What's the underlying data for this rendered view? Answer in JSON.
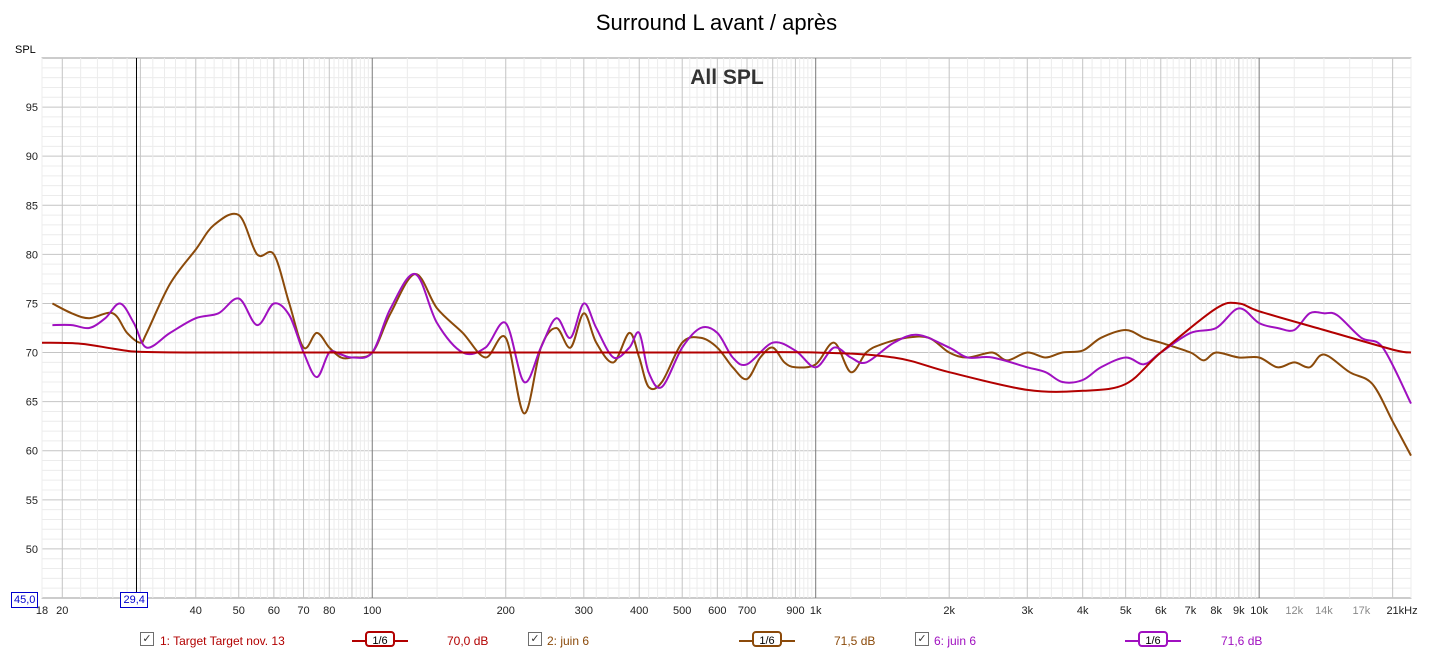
{
  "chart_data": {
    "type": "line",
    "title": "Surround L avant / après",
    "subtitle": "All SPL",
    "ylabel": "SPL",
    "xunit": "Hz",
    "xscale": "log",
    "xlim": [
      18,
      22000
    ],
    "ylim": [
      45,
      100
    ],
    "yticks": [
      50,
      55,
      60,
      65,
      70,
      75,
      80,
      85,
      90,
      95
    ],
    "xtick_labels": [
      {
        "f": 18,
        "label": "18"
      },
      {
        "f": 20,
        "label": "20"
      },
      {
        "f": 40,
        "label": "40"
      },
      {
        "f": 50,
        "label": "50"
      },
      {
        "f": 60,
        "label": "60"
      },
      {
        "f": 70,
        "label": "70"
      },
      {
        "f": 80,
        "label": "80"
      },
      {
        "f": 100,
        "label": "100"
      },
      {
        "f": 200,
        "label": "200"
      },
      {
        "f": 300,
        "label": "300"
      },
      {
        "f": 400,
        "label": "400"
      },
      {
        "f": 500,
        "label": "500"
      },
      {
        "f": 600,
        "label": "600"
      },
      {
        "f": 700,
        "label": "700"
      },
      {
        "f": 900,
        "label": "900"
      },
      {
        "f": 1000,
        "label": "1k"
      },
      {
        "f": 2000,
        "label": "2k"
      },
      {
        "f": 3000,
        "label": "3k"
      },
      {
        "f": 4000,
        "label": "4k"
      },
      {
        "f": 5000,
        "label": "5k"
      },
      {
        "f": 6000,
        "label": "6k"
      },
      {
        "f": 7000,
        "label": "7k"
      },
      {
        "f": 8000,
        "label": "8k"
      },
      {
        "f": 9000,
        "label": "9k"
      },
      {
        "f": 10000,
        "label": "10k"
      },
      {
        "f": 12000,
        "label": "12k"
      },
      {
        "f": 14000,
        "label": "14k"
      },
      {
        "f": 17000,
        "label": "17k"
      },
      {
        "f": 21000,
        "label": "21kHz"
      }
    ],
    "grid": true,
    "cursor": {
      "x": 29.4,
      "x_label": "29,4",
      "y_label": "45,0"
    },
    "series": [
      {
        "name": "1: Target Target nov. 13",
        "color": "#b20000",
        "level": "70,0 dB",
        "smoothing": "1/6",
        "x": [
          18,
          22,
          26,
          29.4,
          40,
          100,
          500,
          1000,
          1500,
          2000,
          3000,
          4000,
          5000,
          6000,
          8000,
          9000,
          10000,
          14000,
          20000,
          22000
        ],
        "y": [
          71.0,
          70.9,
          70.4,
          70.1,
          70.0,
          70.0,
          70.0,
          70.0,
          69.5,
          68.0,
          66.2,
          66.1,
          66.8,
          70.0,
          74.5,
          75.0,
          74.2,
          72.3,
          70.3,
          70.0
        ]
      },
      {
        "name": "2: juin 6",
        "color": "#8b4a0a",
        "level": "71,5 dB",
        "smoothing": "1/6",
        "x": [
          19,
          21,
          23,
          26,
          28,
          30,
          31,
          35,
          40,
          44,
          50,
          55,
          60,
          65,
          70,
          75,
          80,
          85,
          90,
          100,
          110,
          125,
          140,
          160,
          180,
          200,
          220,
          240,
          260,
          280,
          300,
          320,
          350,
          380,
          400,
          420,
          450,
          500,
          550,
          600,
          650,
          700,
          750,
          800,
          850,
          900,
          1000,
          1100,
          1200,
          1300,
          1400,
          1600,
          1800,
          2000,
          2200,
          2500,
          2700,
          3000,
          3300,
          3600,
          4000,
          4400,
          5000,
          5500,
          6000,
          7000,
          7500,
          8000,
          9000,
          10000,
          11000,
          12000,
          13000,
          14000,
          16000,
          18000,
          20000,
          22000
        ],
        "y": [
          75.0,
          74.0,
          73.5,
          74.0,
          72.0,
          71.0,
          72.0,
          77.0,
          80.5,
          83.0,
          84.0,
          80.0,
          80.0,
          75.0,
          70.5,
          72.0,
          70.5,
          69.5,
          69.5,
          70.0,
          74.0,
          78.0,
          74.5,
          72.0,
          69.5,
          71.5,
          63.8,
          70.5,
          72.5,
          70.5,
          74.0,
          71.0,
          69.0,
          72.0,
          69.5,
          66.5,
          67.0,
          71.0,
          71.5,
          70.5,
          68.5,
          67.3,
          69.5,
          70.5,
          69.0,
          68.5,
          68.8,
          71.0,
          68.0,
          70.0,
          70.8,
          71.5,
          71.5,
          70.0,
          69.5,
          70.0,
          69.2,
          70.0,
          69.5,
          70.0,
          70.2,
          71.5,
          72.3,
          71.5,
          71.0,
          70.0,
          69.2,
          70.0,
          69.5,
          69.5,
          68.5,
          69.0,
          68.5,
          69.8,
          68.0,
          66.8,
          63.0,
          59.5
        ]
      },
      {
        "name": "6: juin 6",
        "color": "#a010c0",
        "level": "71,6 dB",
        "smoothing": "1/6",
        "x": [
          19,
          21,
          23,
          25,
          27,
          29,
          31,
          35,
          40,
          45,
          50,
          55,
          60,
          65,
          70,
          75,
          80,
          85,
          90,
          100,
          110,
          125,
          140,
          160,
          180,
          200,
          220,
          240,
          260,
          280,
          300,
          320,
          350,
          380,
          400,
          420,
          450,
          500,
          550,
          600,
          650,
          700,
          800,
          900,
          1000,
          1100,
          1200,
          1300,
          1500,
          1700,
          2000,
          2200,
          2500,
          3000,
          3300,
          3600,
          4000,
          4400,
          5000,
          5500,
          6000,
          7000,
          8000,
          9000,
          10000,
          11000,
          12000,
          13000,
          14000,
          15000,
          17000,
          19000,
          22000
        ],
        "y": [
          72.8,
          72.8,
          72.5,
          73.5,
          75.0,
          73.0,
          70.5,
          72.0,
          73.5,
          74.0,
          75.5,
          72.8,
          75.0,
          73.8,
          70.0,
          67.5,
          70.0,
          69.8,
          69.5,
          70.0,
          74.5,
          78.0,
          73.0,
          70.0,
          70.5,
          73.0,
          67.0,
          70.5,
          73.5,
          71.5,
          75.0,
          72.5,
          69.5,
          70.5,
          72.0,
          68.0,
          66.5,
          70.5,
          72.5,
          72.0,
          69.5,
          68.8,
          71.0,
          70.2,
          68.5,
          70.5,
          69.5,
          69.0,
          71.0,
          71.8,
          70.5,
          69.5,
          69.5,
          68.5,
          68.0,
          67.0,
          67.2,
          68.5,
          69.5,
          68.8,
          70.0,
          72.0,
          72.5,
          74.5,
          73.0,
          72.5,
          72.3,
          74.0,
          74.0,
          73.8,
          71.5,
          70.5,
          64.8
        ]
      }
    ]
  },
  "legend": [
    {
      "checked": "✓",
      "label": "1: Target Target nov. 13",
      "smoothing": "1/6",
      "level": "70,0 dB"
    },
    {
      "checked": "✓",
      "label": "2: juin 6",
      "smoothing": "1/6",
      "level": "71,5 dB"
    },
    {
      "checked": "✓",
      "label": "6: juin 6",
      "smoothing": "1/6",
      "level": "71,6 dB"
    }
  ]
}
